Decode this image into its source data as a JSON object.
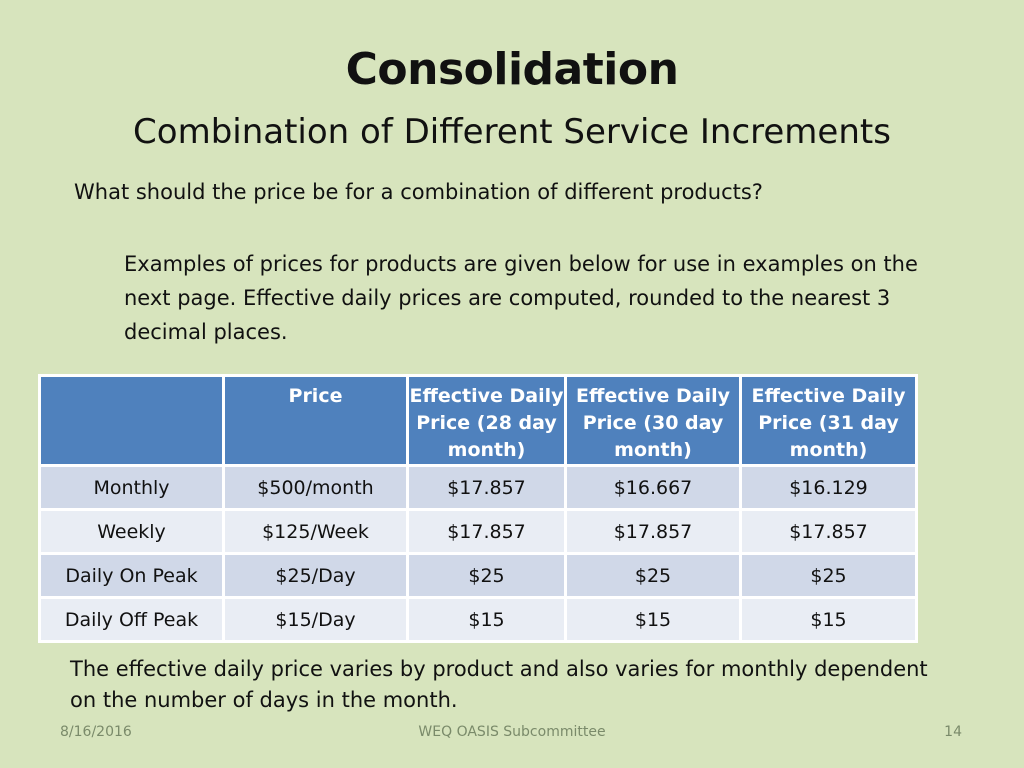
{
  "slide": {
    "title": "Consolidation",
    "subtitle": "Combination of Different Service Increments",
    "question": "What should the price be for a combination of different products?",
    "examples_text": "Examples of prices for products are given below for use in examples on the next page.  Effective daily prices are computed, rounded to the nearest 3 decimal places.",
    "note": "The effective daily price varies by product and also varies for monthly dependent on the number of days in the month."
  },
  "table": {
    "headers": [
      "",
      "Price",
      "Effective Daily Price (28 day month)",
      "Effective Daily Price (30 day month)",
      "Effective Daily Price (31 day month)"
    ],
    "rows": [
      [
        "Monthly",
        "$500/month",
        "$17.857",
        "$16.667",
        "$16.129"
      ],
      [
        "Weekly",
        "$125/Week",
        "$17.857",
        "$17.857",
        "$17.857"
      ],
      [
        "Daily On Peak",
        "$25/Day",
        "$25",
        "$25",
        "$25"
      ],
      [
        "Daily Off Peak",
        "$15/Day",
        "$15",
        "$15",
        "$15"
      ]
    ]
  },
  "footer": {
    "date": "8/16/2016",
    "center": "WEQ OASIS Subcommittee",
    "page": "14"
  }
}
